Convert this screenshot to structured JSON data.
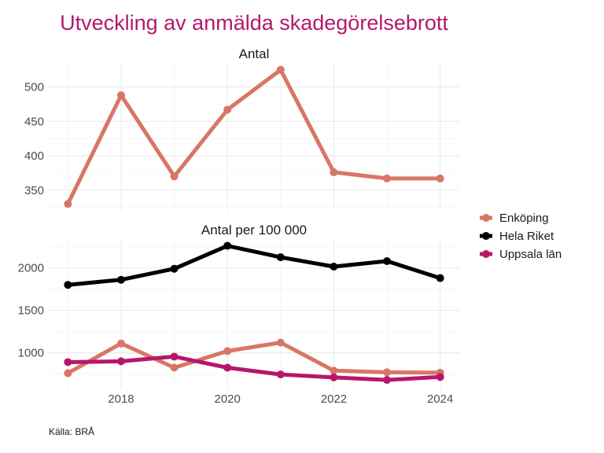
{
  "chart_data": {
    "type": "line",
    "title": "Utveckling av anmälda skadegörelsebrott",
    "caption": "Källa: BRÅ",
    "x": [
      2017,
      2018,
      2019,
      2020,
      2021,
      2022,
      2023,
      2024
    ],
    "x_ticks": [
      "2018",
      "2020",
      "2022",
      "2024"
    ],
    "x_tick_values": [
      2018,
      2020,
      2022,
      2024
    ],
    "legend": {
      "placement": "right",
      "entries": [
        {
          "name": "Enköping",
          "color": "#d87665"
        },
        {
          "name": "Hela Riket",
          "color": "#000000"
        },
        {
          "name": "Uppsala län",
          "color": "#b5186b"
        }
      ]
    },
    "panels": [
      {
        "strip_label": "Antal",
        "ylim": [
          320,
          535
        ],
        "y_ticks": [
          "350",
          "400",
          "450",
          "500"
        ],
        "y_tick_values": [
          350,
          400,
          450,
          500
        ],
        "grid": true,
        "series": [
          {
            "name": "Enköping",
            "color": "#d87665",
            "values": [
              330,
              488,
              370,
              467,
              525,
              376,
              367,
              367
            ]
          }
        ]
      },
      {
        "strip_label": "Antal per 100 000",
        "ylim": [
          570,
          2330
        ],
        "y_ticks": [
          "1000",
          "1500",
          "2000"
        ],
        "y_tick_values": [
          1000,
          1500,
          2000
        ],
        "grid": true,
        "series": [
          {
            "name": "Enköping",
            "color": "#d87665",
            "values": [
              760,
              1110,
              825,
              1020,
              1120,
              790,
              770,
              765
            ]
          },
          {
            "name": "Hela Riket",
            "color": "#000000",
            "values": [
              1800,
              1860,
              1990,
              2260,
              2125,
              2015,
              2080,
              1880
            ]
          },
          {
            "name": "Uppsala län",
            "color": "#b5186b",
            "values": [
              890,
              900,
              955,
              825,
              745,
              710,
              680,
              715
            ]
          }
        ]
      }
    ]
  }
}
